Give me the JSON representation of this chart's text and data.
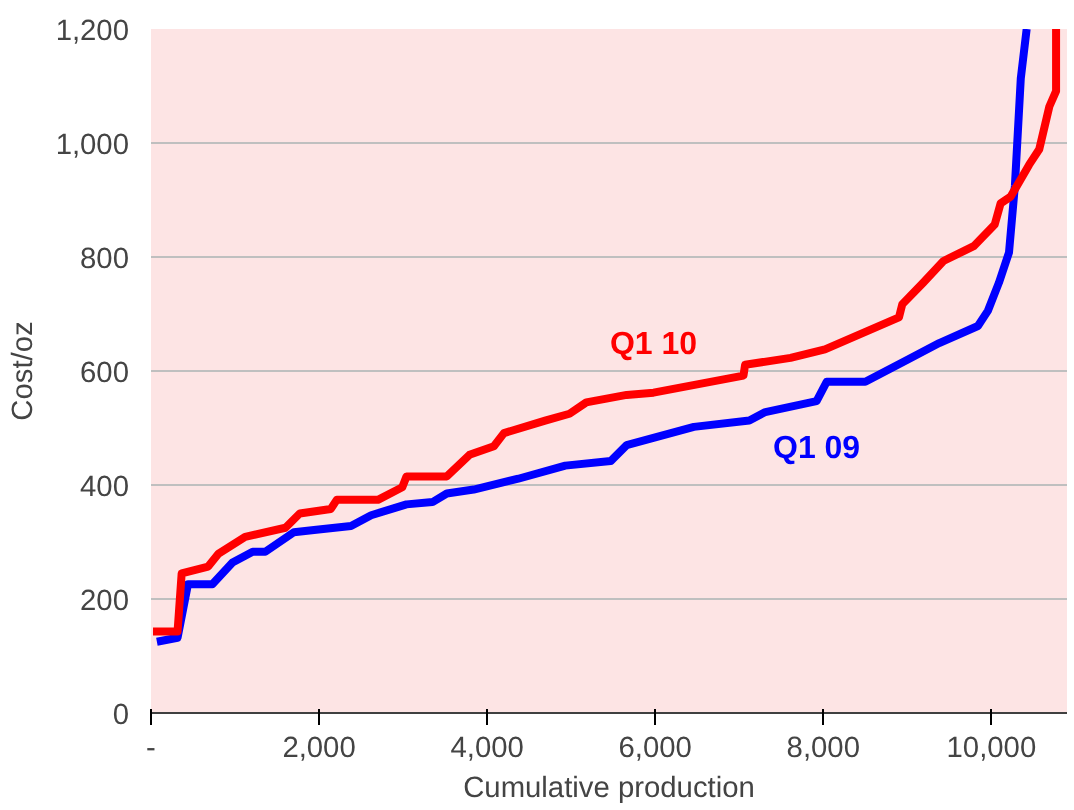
{
  "chart_data": {
    "type": "line",
    "xlabel": "Cumulative production",
    "ylabel": "Cost/oz",
    "xlim": [
      0,
      10900
    ],
    "ylim": [
      0,
      1200
    ],
    "xticks": [
      {
        "value": 0,
        "label": "-"
      },
      {
        "value": 2000,
        "label": "2,000"
      },
      {
        "value": 4000,
        "label": "4,000"
      },
      {
        "value": 6000,
        "label": "6,000"
      },
      {
        "value": 8000,
        "label": "8,000"
      },
      {
        "value": 10000,
        "label": "10,000"
      }
    ],
    "yticks": [
      {
        "value": 0,
        "label": "0"
      },
      {
        "value": 200,
        "label": "200"
      },
      {
        "value": 400,
        "label": "400"
      },
      {
        "value": 600,
        "label": "600"
      },
      {
        "value": 800,
        "label": "800"
      },
      {
        "value": 1000,
        "label": "1,000"
      },
      {
        "value": 1200,
        "label": "1,200"
      }
    ],
    "grid": "y",
    "line_style": "solid",
    "marker": "none",
    "series": [
      {
        "name": "Q1 09",
        "color": "#0000ff",
        "x": [
          70,
          316,
          440,
          730,
          970,
          1210,
          1360,
          1700,
          1940,
          2380,
          2620,
          3040,
          3350,
          3520,
          3840,
          4370,
          4930,
          5470,
          5660,
          6460,
          7120,
          7310,
          7920,
          8040,
          8500,
          8990,
          9380,
          9840,
          9960,
          10090,
          10210,
          10280,
          10350,
          10420
        ],
        "values": [
          125,
          132,
          226,
          226,
          264,
          283,
          283,
          317,
          321,
          328,
          347,
          366,
          370,
          385,
          392,
          411,
          434,
          442,
          470,
          502,
          513,
          528,
          547,
          581,
          581,
          619,
          649,
          679,
          706,
          755,
          808,
          925,
          1113,
          1200
        ]
      },
      {
        "name": "Q1 10",
        "color": "#ff0000",
        "x": [
          24,
          316,
          365,
          680,
          800,
          1120,
          1600,
          1770,
          2140,
          2210,
          2700,
          2990,
          3040,
          3520,
          3790,
          4080,
          4200,
          4690,
          4980,
          5180,
          5660,
          5980,
          7050,
          7070,
          7610,
          8020,
          8900,
          8940,
          9190,
          9430,
          9790,
          10040,
          10110,
          10230,
          10450,
          10570,
          10690,
          10770,
          10770
        ],
        "values": [
          143,
          143,
          245,
          257,
          279,
          309,
          325,
          350,
          358,
          374,
          374,
          396,
          415,
          415,
          453,
          468,
          491,
          513,
          525,
          545,
          558,
          562,
          592,
          611,
          623,
          638,
          694,
          717,
          755,
          793,
          819,
          857,
          894,
          906,
          962,
          989,
          1064,
          1091,
          1200
        ]
      }
    ]
  }
}
